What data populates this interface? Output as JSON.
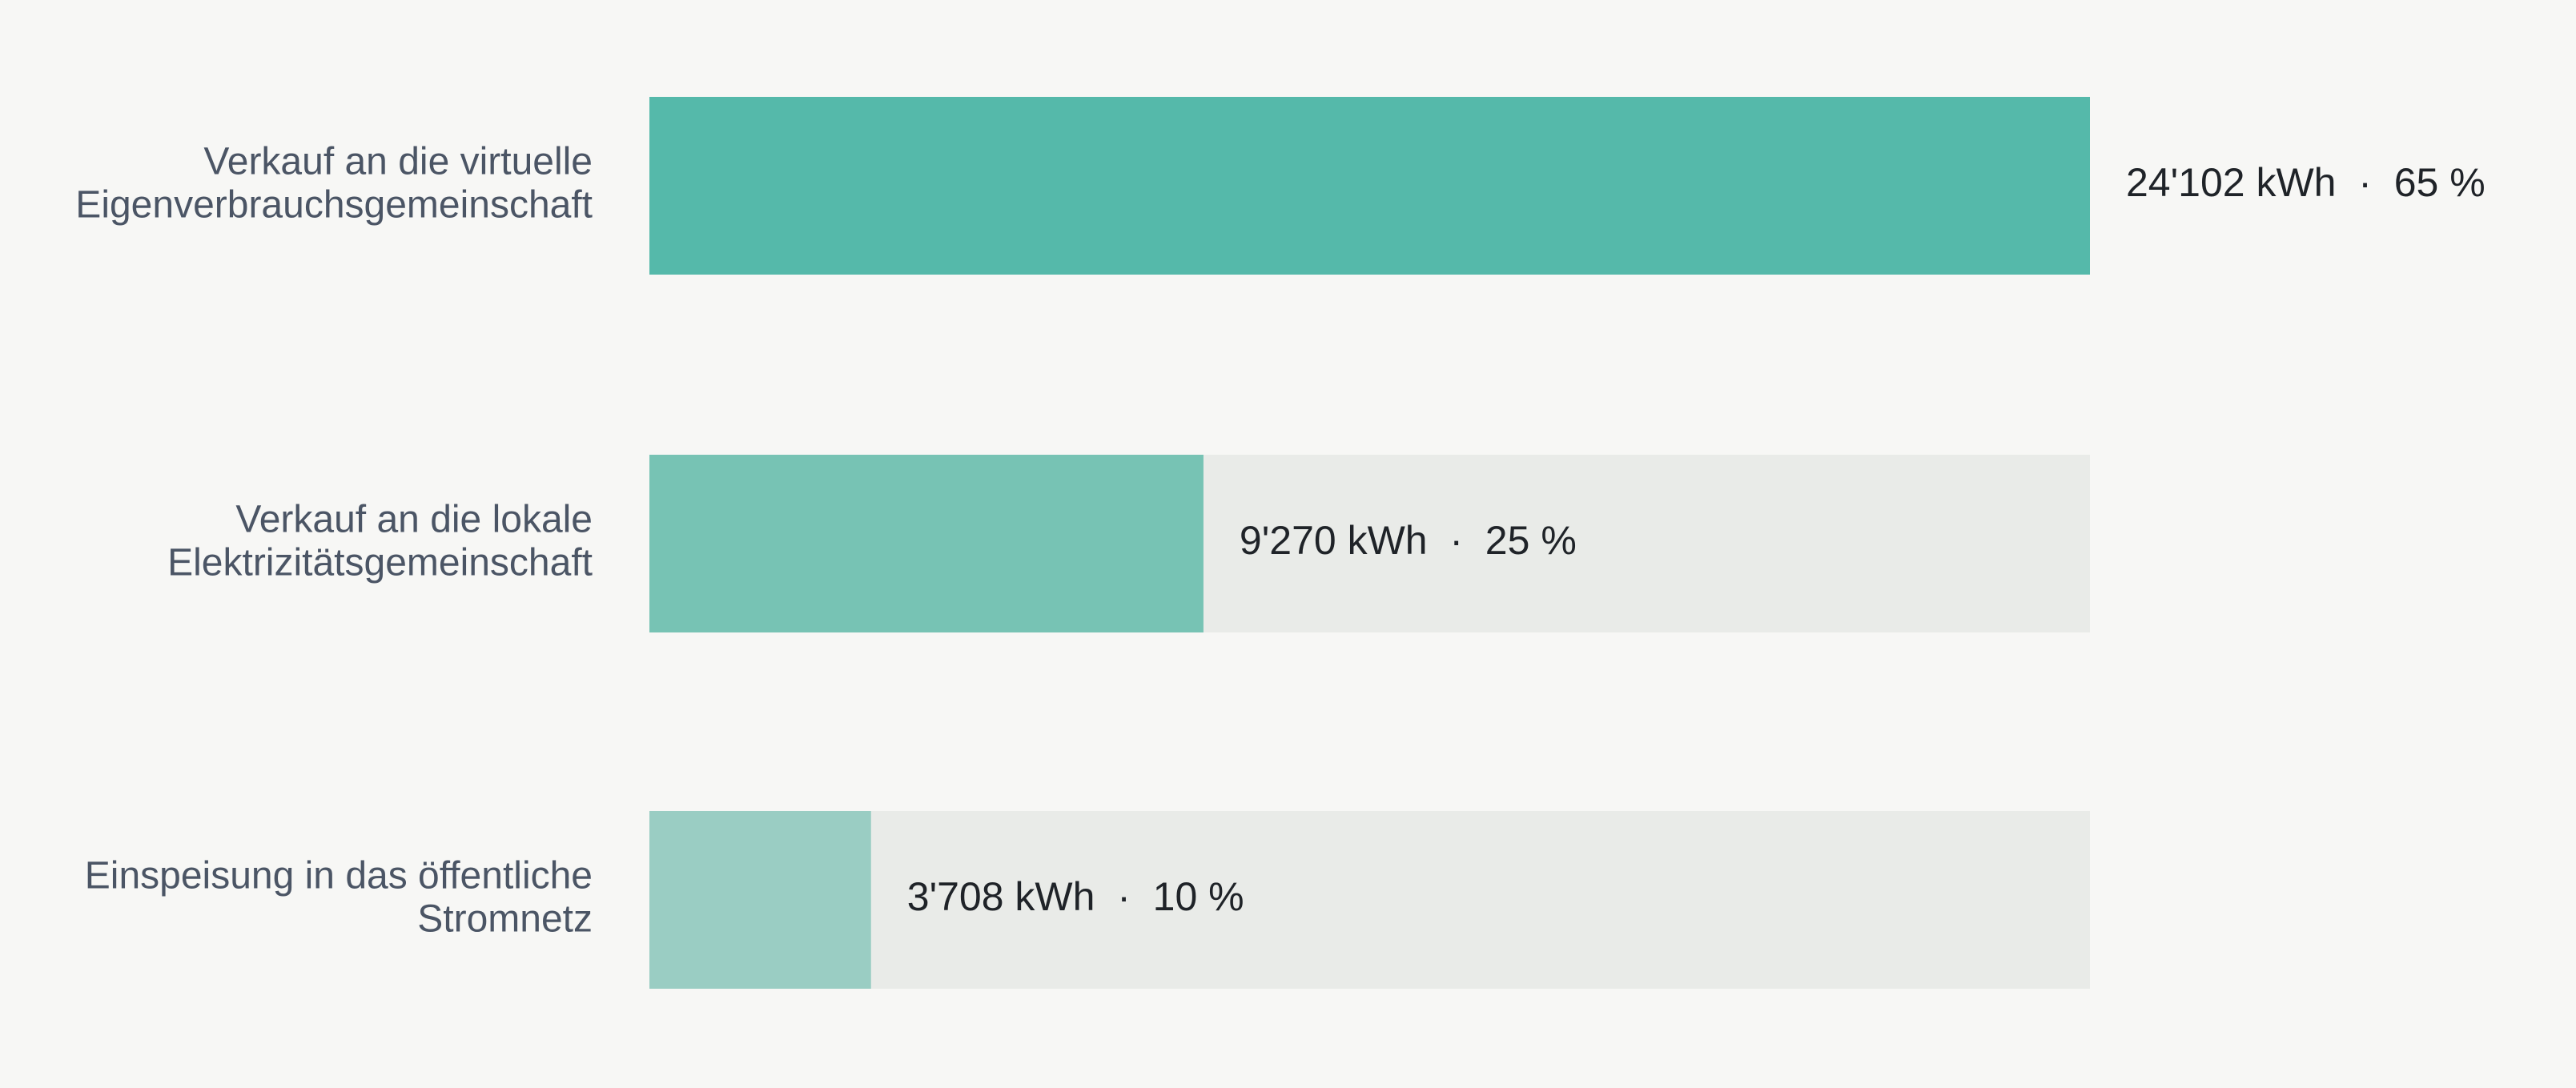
{
  "chart_data": {
    "type": "bar",
    "orientation": "horizontal",
    "categories": [
      [
        "Verkauf an die virtuelle",
        "Eigenverbrauchsgemeinschaft"
      ],
      [
        "Verkauf an die lokale",
        "Elektrizitätsgemeinschaft"
      ],
      [
        "Einspeisung in das öffentliche",
        "Stromnetz"
      ]
    ],
    "values": [
      24102,
      9270,
      3708
    ],
    "value_labels": [
      "24'102 kWh  ·  65 %",
      "9'270 kWh  ·  25 %",
      "3'708 kWh  ·  10 %"
    ],
    "colors": [
      "#55b9aa",
      "#77c3b4",
      "#9acdc3"
    ],
    "track_color": "#e9ebe8"
  }
}
